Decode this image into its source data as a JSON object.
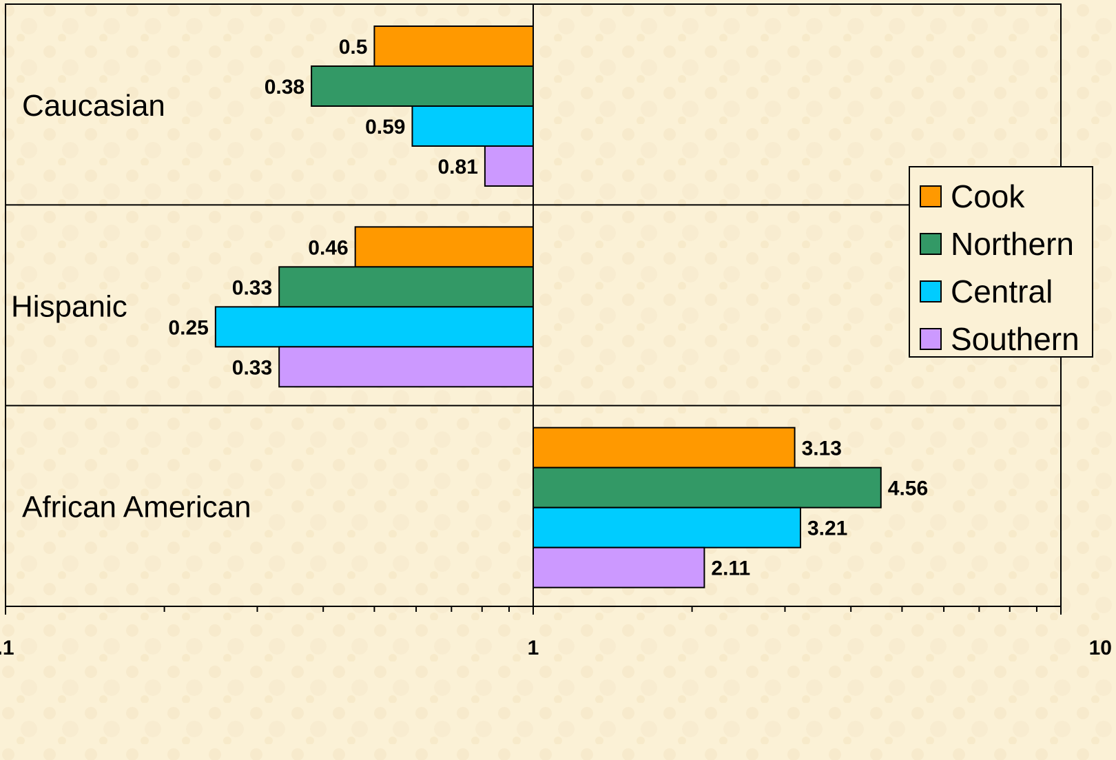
{
  "chart_data": {
    "type": "bar",
    "orientation": "horizontal",
    "x_scale": "log",
    "xlim": [
      0.1,
      10
    ],
    "x_ticks": [
      0.1,
      1,
      10
    ],
    "x_tick_labels": [
      ".1",
      "1",
      "10"
    ],
    "categories": [
      "Caucasian",
      "Hispanic",
      "African American"
    ],
    "series": [
      {
        "name": "Cook",
        "color": "#FF9900",
        "values": [
          0.5,
          0.46,
          3.13
        ],
        "labels": [
          "0.5",
          "0.46",
          "3.13"
        ]
      },
      {
        "name": "Northern",
        "color": "#339966",
        "values": [
          0.38,
          0.33,
          4.56
        ],
        "labels": [
          "0.38",
          "0.33",
          "4.56"
        ]
      },
      {
        "name": "Central",
        "color": "#00CCFF",
        "values": [
          0.59,
          0.25,
          3.21
        ],
        "labels": [
          "0.59",
          "0.25",
          "3.21"
        ]
      },
      {
        "name": "Southern",
        "color": "#CC99FF",
        "values": [
          0.81,
          0.33,
          2.11
        ],
        "labels": [
          "0.81",
          "0.33",
          "2.11"
        ]
      }
    ],
    "title": "",
    "xlabel": "",
    "ylabel": "",
    "grid": true,
    "legend_position": "right",
    "background_color": "#FBF1D6"
  }
}
